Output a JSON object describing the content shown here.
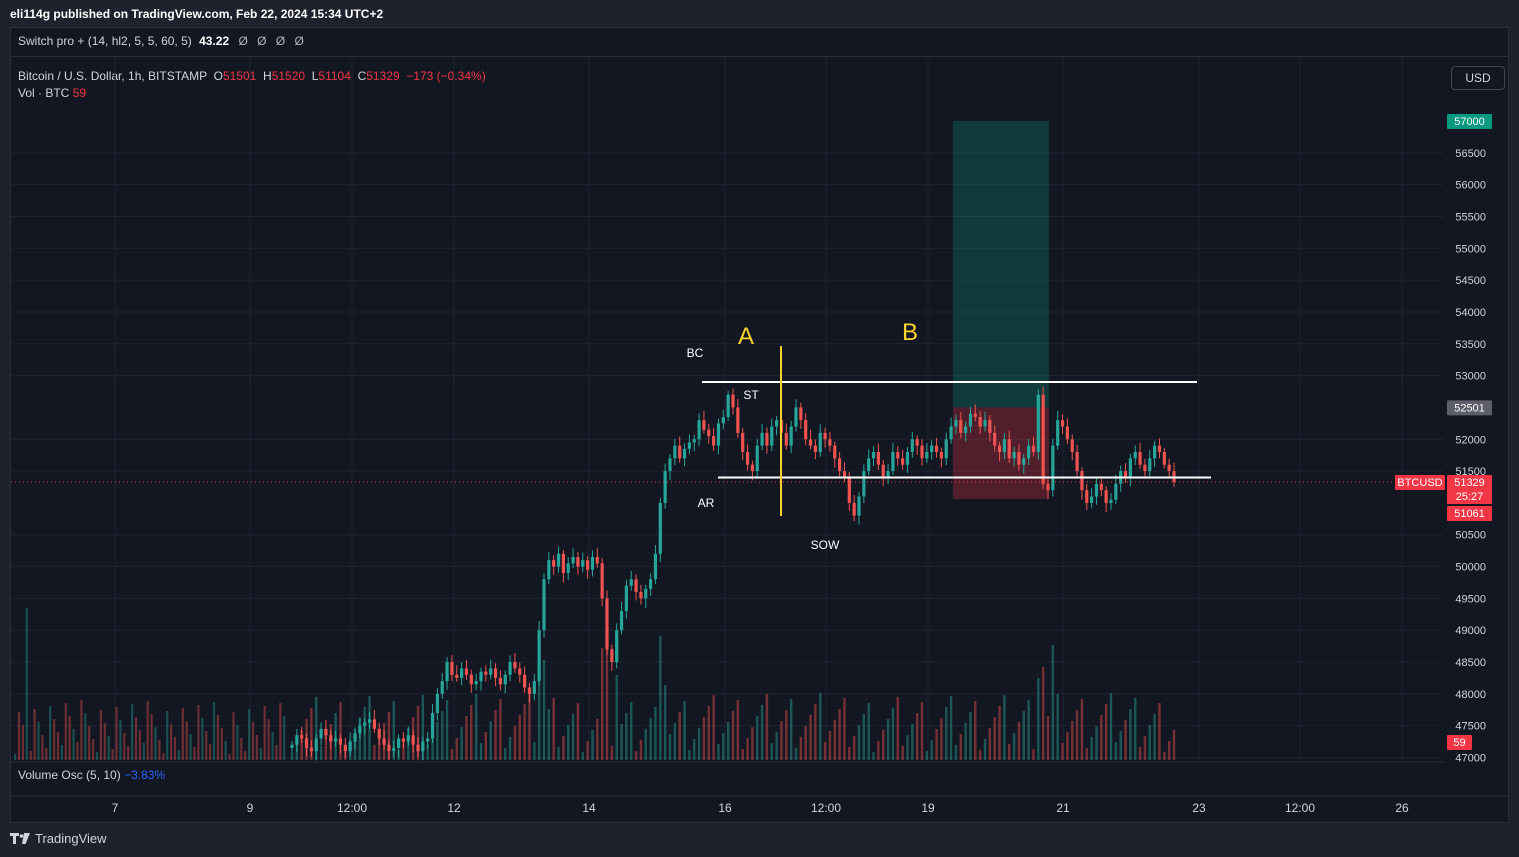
{
  "header": {
    "published": "eli114g published on TradingView.com, Feb 22, 2024 15:34 UTC+2"
  },
  "indicator": {
    "name": "Switch pro + (14, hl2, 5, 5, 60, 5)",
    "value": "43.22",
    "nulls": [
      "Ø",
      "Ø",
      "Ø",
      "Ø"
    ]
  },
  "symbol": {
    "name": "Bitcoin / U.S. Dollar, 1h, BITSTAMP",
    "o_label": "O",
    "o": "51501",
    "h_label": "H",
    "h": "51520",
    "l_label": "L",
    "l": "51104",
    "c_label": "C",
    "c": "51329",
    "change": "−173 (−0.34%)"
  },
  "volume": {
    "label": "Vol · BTC",
    "value": "59"
  },
  "currency_button": "USD",
  "oscillator": {
    "label": "Volume Osc (5, 10)",
    "value": "−3.83%"
  },
  "footer": {
    "brand": "TradingView",
    "logo_icon": "tradingview-logo-icon"
  },
  "colors": {
    "up": "#26a69a",
    "down": "#ef5350",
    "label_bg": "#f23645",
    "target_bg": "#089981",
    "bg": "#131722"
  },
  "chart_data": {
    "type": "candlestick",
    "symbol": "BTCUSD",
    "interval": "1h",
    "y_ticks": [
      "56500",
      "56000",
      "55500",
      "55000",
      "54500",
      "54000",
      "53500",
      "53000",
      "52000",
      "51500",
      "50500",
      "50000",
      "49500",
      "49000",
      "48500",
      "48000",
      "47500",
      "47000"
    ],
    "ylim": [
      47000,
      57000
    ],
    "x_ticks": [
      "7",
      "9",
      "12:00",
      "12",
      "14",
      "16",
      "12:00",
      "19",
      "21",
      "23",
      "12:00",
      "26"
    ],
    "price_labels": {
      "target": "57000",
      "entry": "52501",
      "last_symbol": "BTCUSD",
      "last": "51329",
      "countdown": "25:27",
      "stop": "51061",
      "volume_last": "59"
    },
    "annotations": [
      "A",
      "B",
      "BC",
      "ST",
      "AR",
      "SOW"
    ],
    "levels": {
      "resistance": 52900,
      "support": 51400
    },
    "position": {
      "entry": 52501,
      "target": 57000,
      "stop": 51061
    },
    "close": [
      47200,
      47350,
      47300,
      47150,
      47100,
      47300,
      47450,
      47350,
      47250,
      47300,
      47200,
      47100,
      47250,
      47380,
      47500,
      47550,
      47600,
      47450,
      47300,
      47200,
      47100,
      47150,
      47300,
      47250,
      47350,
      47200,
      47100,
      47250,
      47300,
      47700,
      48000,
      48200,
      48500,
      48300,
      48250,
      48400,
      48300,
      48150,
      48200,
      48350,
      48300,
      48400,
      48250,
      48150,
      48300,
      48500,
      48400,
      48300,
      48100,
      48000,
      48200,
      49000,
      49800,
      50100,
      50000,
      50200,
      49900,
      50050,
      50150,
      50000,
      50100,
      49950,
      50150,
      50050,
      49500,
      48700,
      48500,
      49000,
      49300,
      49700,
      49800,
      49600,
      49500,
      49650,
      49800,
      50200,
      51000,
      51500,
      51700,
      51900,
      51700,
      51850,
      51950,
      52000,
      52300,
      52150,
      52050,
      51900,
      52250,
      52350,
      52700,
      52500,
      52100,
      51800,
      51600,
      51500,
      51900,
      52100,
      51900,
      52200,
      52300,
      52100,
      51900,
      52200,
      52500,
      52300,
      52000,
      51900,
      51800,
      52100,
      52000,
      51900,
      51700,
      51500,
      51400,
      51000,
      50800,
      51100,
      51500,
      51700,
      51800,
      51600,
      51400,
      51500,
      51800,
      51700,
      51600,
      51800,
      52000,
      51900,
      51700,
      51800,
      51900,
      51800,
      51700,
      52000,
      52200,
      52300,
      52100,
      52200,
      52400,
      52350,
      52200,
      52300,
      52100,
      51900,
      51800,
      52000,
      51700,
      51800,
      51600,
      51700,
      51900,
      51800,
      52700,
      51300,
      51200,
      51900,
      52300,
      52200,
      52000,
      51800,
      51500,
      51200,
      51000,
      51100,
      51300,
      51200,
      51000,
      51050,
      51300,
      51500,
      51400,
      51700,
      51800,
      51600,
      51500,
      51700,
      51900,
      51800,
      51600,
      51500,
      51329
    ]
  }
}
